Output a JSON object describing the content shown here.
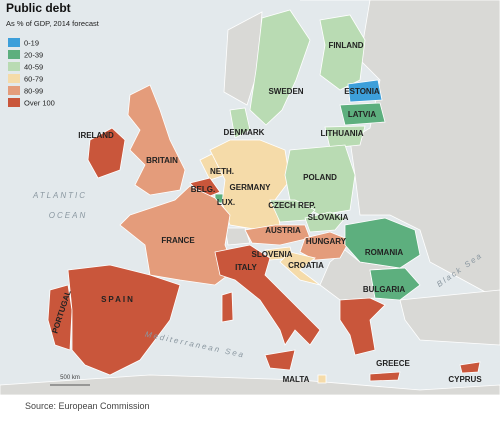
{
  "title": "Public debt",
  "subtitle": "As % of GDP, 2014 forecast",
  "legend": [
    {
      "label": "0-19",
      "color": "#3d9fda"
    },
    {
      "label": "20-39",
      "color": "#5daf7e"
    },
    {
      "label": "40-59",
      "color": "#b9dbb3"
    },
    {
      "label": "60-79",
      "color": "#f5dba9"
    },
    {
      "label": "80-99",
      "color": "#e49c7b"
    },
    {
      "label": "Over 100",
      "color": "#c9563b"
    }
  ],
  "countries": [
    {
      "label": "FINLAND",
      "class": 2
    },
    {
      "label": "SWEDEN",
      "class": 2
    },
    {
      "label": "ESTONIA",
      "class": 0
    },
    {
      "label": "LATVIA",
      "class": 1
    },
    {
      "label": "LITHUANIA",
      "class": 2
    },
    {
      "label": "DENMARK",
      "class": 2
    },
    {
      "label": "IRELAND",
      "class": 5
    },
    {
      "label": "BRITAIN",
      "class": 4
    },
    {
      "label": "NETH.",
      "class": 3
    },
    {
      "label": "BELG.",
      "class": 5
    },
    {
      "label": "LUX.",
      "class": 1
    },
    {
      "label": "GERMANY",
      "class": 3
    },
    {
      "label": "POLAND",
      "class": 2
    },
    {
      "label": "CZECH REP.",
      "class": 2
    },
    {
      "label": "SLOVAKIA",
      "class": 2
    },
    {
      "label": "FRANCE",
      "class": 4
    },
    {
      "label": "AUSTRIA",
      "class": 4
    },
    {
      "label": "HUNGARY",
      "class": 4
    },
    {
      "label": "ROMANIA",
      "class": 1
    },
    {
      "label": "SLOVENIA",
      "class": 3
    },
    {
      "label": "CROATIA",
      "class": 3
    },
    {
      "label": "ITALY",
      "class": 5
    },
    {
      "label": "BULGARIA",
      "class": 1
    },
    {
      "label": "PORTUGAL",
      "class": 5
    },
    {
      "label": "SPAIN",
      "class": 5
    },
    {
      "label": "MALTA",
      "class": 3
    },
    {
      "label": "GREECE",
      "class": 5
    },
    {
      "label": "CYPRUS",
      "class": 5
    }
  ],
  "sea_labels": [
    "ATLANTIC",
    "OCEAN",
    "Mediterranean Sea",
    "Black Sea"
  ],
  "scale": "500 km",
  "source": "Source: European Commission"
}
